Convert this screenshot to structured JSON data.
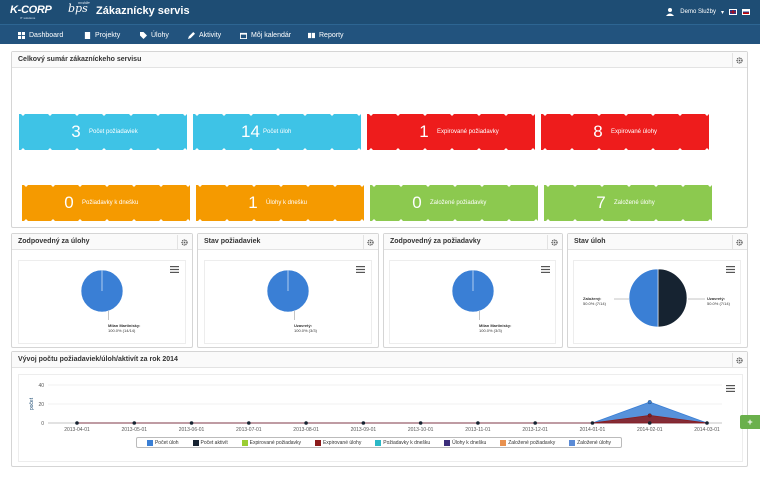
{
  "header": {
    "logo_main": "K-CORP",
    "logo_sub": "IT solutions",
    "product": "bps",
    "product_sub": "mobile",
    "title": "Zákaznícky servis",
    "user": "Demo Služby"
  },
  "nav": {
    "items": [
      {
        "label": "Dashboard",
        "icon": "dashboard-icon"
      },
      {
        "label": "Projekty",
        "icon": "folder-icon"
      },
      {
        "label": "Úlohy",
        "icon": "tag-icon"
      },
      {
        "label": "Aktivity",
        "icon": "pencil-icon"
      },
      {
        "label": "Môj kalendár",
        "icon": "calendar-icon"
      },
      {
        "label": "Reporty",
        "icon": "book-icon"
      }
    ]
  },
  "summary": {
    "title": "Celkový sumár zákazníckeho servisu",
    "tiles": [
      {
        "value": "3",
        "label": "Počet požiadaviek",
        "color": "#3ec3e6"
      },
      {
        "value": "14",
        "label": "Počet úloh",
        "color": "#3ec3e6"
      },
      {
        "value": "1",
        "label": "Expirované požiadavky",
        "color": "#ee1c1c"
      },
      {
        "value": "8",
        "label": "Expirované úlohy",
        "color": "#ee1c1c"
      },
      {
        "value": "0",
        "label": "Požiadavky k dnešku",
        "color": "#f59a00"
      },
      {
        "value": "1",
        "label": "Úlohy k dnešku",
        "color": "#f59a00"
      },
      {
        "value": "0",
        "label": "Založené požiadavky",
        "color": "#8cc94f"
      },
      {
        "value": "7",
        "label": "Založené úlohy",
        "color": "#8cc94f"
      }
    ]
  },
  "pies": [
    {
      "title": "Zodpovedný za úlohy",
      "label_name": "Milan Martinisky:",
      "label_value": "100.0% (14/14)"
    },
    {
      "title": "Stav požiadaviek",
      "label_name": "Uzavretý:",
      "label_value": "100.0% (3/3)"
    },
    {
      "title": "Zodpovedný za požiadavky",
      "label_name": "Milan Martinisky:",
      "label_value": "100.0% (3/3)"
    },
    {
      "title": "Stav úloh",
      "left_name": "Založený:",
      "left_value": "50.0% (7/14)",
      "right_name": "Uzavretý:",
      "right_value": "50.0% (7/14)"
    }
  ],
  "trend": {
    "title": "Vývoj počtu požiadaviek/úloh/aktivít za rok 2014"
  },
  "chart_data": [
    {
      "type": "pie",
      "labels": [
        "Milan Martinisky"
      ],
      "values": [
        14
      ],
      "display": [
        "100.0% (14/14)"
      ]
    },
    {
      "type": "pie",
      "labels": [
        "Uzavretý"
      ],
      "values": [
        3
      ],
      "display": [
        "100.0% (3/3)"
      ]
    },
    {
      "type": "pie",
      "labels": [
        "Milan Martinisky"
      ],
      "values": [
        3
      ],
      "display": [
        "100.0% (3/3)"
      ]
    },
    {
      "type": "pie",
      "labels": [
        "Založený",
        "Uzavretý"
      ],
      "values": [
        7,
        7
      ],
      "display": [
        "50.0% (7/14)",
        "50.0% (7/14)"
      ],
      "colors": [
        "#162331",
        "#3a7fd5"
      ]
    },
    {
      "type": "area",
      "categories": [
        "2013-04-01",
        "2013-05-01",
        "2013-06-01",
        "2013-07-01",
        "2013-08-01",
        "2013-09-01",
        "2013-10-01",
        "2013-11-01",
        "2013-12-01",
        "2014-01-01",
        "2014-02-01",
        "2014-03-01"
      ],
      "ylabel": "počet",
      "ylim": [
        0,
        40
      ],
      "yticks": [
        "0",
        "20",
        "40"
      ],
      "legend_position": "bottom",
      "series": [
        {
          "name": "Počet úloh",
          "color": "#3a7fd5",
          "values": [
            0,
            0,
            0,
            0,
            0,
            0,
            0,
            0,
            0,
            0,
            22,
            0
          ]
        },
        {
          "name": "Počet aktivít",
          "color": "#162331",
          "values": [
            0,
            0,
            0,
            0,
            0,
            0,
            0,
            0,
            0,
            0,
            0,
            0
          ]
        },
        {
          "name": "Expirované požiadavky",
          "color": "#9acd32",
          "values": [
            0,
            0,
            0,
            0,
            0,
            0,
            0,
            0,
            0,
            0,
            0,
            0
          ]
        },
        {
          "name": "Expirované úlohy",
          "color": "#8b1a1a",
          "values": [
            0,
            0,
            0,
            0,
            0,
            0,
            0,
            0,
            0,
            0,
            8,
            0
          ]
        },
        {
          "name": "Požiadavky k dnešku",
          "color": "#2bb8c6",
          "values": [
            0,
            0,
            0,
            0,
            0,
            0,
            0,
            0,
            0,
            0,
            0,
            0
          ]
        },
        {
          "name": "Úlohy k dnešku",
          "color": "#3b2d7a",
          "values": [
            0,
            0,
            0,
            0,
            0,
            0,
            0,
            0,
            0,
            0,
            0,
            0
          ]
        },
        {
          "name": "Založené požiadavky",
          "color": "#e8914f",
          "values": [
            0,
            0,
            0,
            0,
            0,
            0,
            0,
            0,
            0,
            0,
            0,
            0
          ]
        },
        {
          "name": "Založené úlohy",
          "color": "#5b8bd6",
          "values": [
            0,
            0,
            0,
            0,
            0,
            0,
            0,
            0,
            0,
            0,
            0,
            0
          ]
        }
      ]
    }
  ]
}
